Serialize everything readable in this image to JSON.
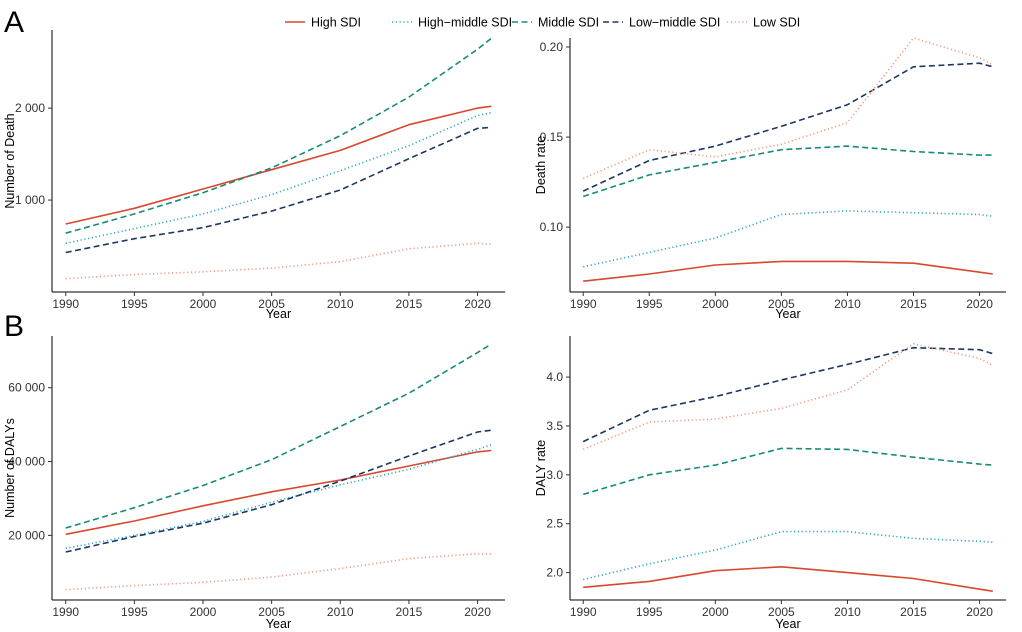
{
  "panel_labels": {
    "a": "A",
    "b": "B"
  },
  "legend": [
    {
      "name": "High SDI",
      "color": "#d9472f",
      "dash": "solid"
    },
    {
      "name": "High−middle SDI",
      "color": "#2aa8c6",
      "dash": "dotted"
    },
    {
      "name": "Middle SDI",
      "color": "#168b78",
      "dash": "dashed"
    },
    {
      "name": "Low−middle SDI",
      "color": "#1c3763",
      "dash": "dashed"
    },
    {
      "name": "Low SDI",
      "color": "#ee9a83",
      "dash": "dotted"
    }
  ],
  "chart_data": [
    {
      "type": "line",
      "id": "deaths",
      "title": "",
      "xlabel": "Year",
      "ylabel": "Number of Death",
      "xlim": [
        1989,
        2022
      ],
      "ylim": [
        0,
        2850
      ],
      "xticks": [
        1990,
        1995,
        2000,
        2005,
        2010,
        2015,
        2020
      ],
      "yticks": [
        1000,
        2000
      ],
      "ytick_labels": [
        "1 000",
        "2 000"
      ],
      "x": [
        1990,
        1995,
        2000,
        2005,
        2010,
        2015,
        2020,
        2021
      ],
      "series": [
        {
          "name": "High SDI",
          "values": [
            740,
            910,
            1120,
            1330,
            1540,
            1820,
            2000,
            2020
          ]
        },
        {
          "name": "High−middle SDI",
          "values": [
            530,
            690,
            850,
            1060,
            1320,
            1590,
            1920,
            1950
          ]
        },
        {
          "name": "Middle SDI",
          "values": [
            640,
            850,
            1080,
            1350,
            1700,
            2120,
            2640,
            2760
          ]
        },
        {
          "name": "Low−middle SDI",
          "values": [
            430,
            580,
            700,
            880,
            1110,
            1450,
            1780,
            1790
          ]
        },
        {
          "name": "Low SDI",
          "values": [
            145,
            190,
            220,
            260,
            330,
            470,
            530,
            520
          ]
        }
      ]
    },
    {
      "type": "line",
      "id": "death-rate",
      "title": "",
      "xlabel": "Year",
      "ylabel": "Death rate",
      "xlim": [
        1989,
        2022
      ],
      "ylim": [
        0.064,
        0.205
      ],
      "xticks": [
        1990,
        1995,
        2000,
        2005,
        2010,
        2015,
        2020
      ],
      "yticks": [
        0.1,
        0.15,
        0.2
      ],
      "ytick_labels": [
        "0.10",
        "0.15",
        "0.20"
      ],
      "x": [
        1990,
        1995,
        2000,
        2005,
        2010,
        2015,
        2020,
        2021
      ],
      "series": [
        {
          "name": "High SDI",
          "values": [
            0.07,
            0.074,
            0.079,
            0.081,
            0.081,
            0.08,
            0.075,
            0.074
          ]
        },
        {
          "name": "High−middle SDI",
          "values": [
            0.078,
            0.086,
            0.094,
            0.107,
            0.109,
            0.108,
            0.107,
            0.106
          ]
        },
        {
          "name": "Middle SDI",
          "values": [
            0.117,
            0.129,
            0.136,
            0.143,
            0.145,
            0.142,
            0.14,
            0.14
          ]
        },
        {
          "name": "Low−middle SDI",
          "values": [
            0.12,
            0.137,
            0.145,
            0.156,
            0.168,
            0.189,
            0.191,
            0.189
          ]
        },
        {
          "name": "Low SDI",
          "values": [
            0.127,
            0.143,
            0.139,
            0.146,
            0.158,
            0.205,
            0.194,
            0.19
          ]
        }
      ]
    },
    {
      "type": "line",
      "id": "dalys",
      "title": "",
      "xlabel": "Year",
      "ylabel": "Number of DALYs",
      "xlim": [
        1989,
        2022
      ],
      "ylim": [
        2500,
        74000
      ],
      "xticks": [
        1990,
        1995,
        2000,
        2005,
        2010,
        2015,
        2020
      ],
      "yticks": [
        20000,
        40000,
        60000
      ],
      "ytick_labels": [
        "20 000",
        "40 000",
        "60 000"
      ],
      "x": [
        1990,
        1995,
        2000,
        2005,
        2010,
        2015,
        2020,
        2021
      ],
      "series": [
        {
          "name": "High SDI",
          "values": [
            20300,
            23900,
            28000,
            31800,
            35000,
            38800,
            42600,
            43000
          ]
        },
        {
          "name": "High−middle SDI",
          "values": [
            16500,
            20000,
            23800,
            29000,
            33700,
            37900,
            43300,
            44500
          ]
        },
        {
          "name": "Middle SDI",
          "values": [
            22000,
            27500,
            33500,
            40500,
            49500,
            58500,
            69500,
            71800
          ]
        },
        {
          "name": "Low−middle SDI",
          "values": [
            15500,
            19700,
            23300,
            28300,
            34700,
            41500,
            48000,
            48500
          ]
        },
        {
          "name": "Low SDI",
          "values": [
            5300,
            6400,
            7300,
            8700,
            11000,
            13700,
            15000,
            14900
          ]
        }
      ]
    },
    {
      "type": "line",
      "id": "daly-rate",
      "title": "",
      "xlabel": "Year",
      "ylabel": "DALY rate",
      "xlim": [
        1989,
        2022
      ],
      "ylim": [
        1.72,
        4.42
      ],
      "xticks": [
        1990,
        1995,
        2000,
        2005,
        2010,
        2015,
        2020
      ],
      "yticks": [
        2.0,
        2.5,
        3.0,
        3.5,
        4.0
      ],
      "ytick_labels": [
        "2.0",
        "2.5",
        "3.0",
        "3.5",
        "4.0"
      ],
      "x": [
        1990,
        1995,
        2000,
        2005,
        2010,
        2015,
        2020,
        2021
      ],
      "series": [
        {
          "name": "High SDI",
          "values": [
            1.85,
            1.91,
            2.02,
            2.06,
            2.0,
            1.94,
            1.83,
            1.81
          ]
        },
        {
          "name": "High−middle SDI",
          "values": [
            1.93,
            2.09,
            2.23,
            2.42,
            2.42,
            2.35,
            2.32,
            2.31
          ]
        },
        {
          "name": "Middle SDI",
          "values": [
            2.8,
            3.0,
            3.1,
            3.27,
            3.26,
            3.18,
            3.11,
            3.1
          ]
        },
        {
          "name": "Low−middle SDI",
          "values": [
            3.34,
            3.66,
            3.8,
            3.97,
            4.13,
            4.3,
            4.28,
            4.24
          ]
        },
        {
          "name": "Low SDI",
          "values": [
            3.26,
            3.54,
            3.57,
            3.68,
            3.87,
            4.34,
            4.19,
            4.12
          ]
        }
      ]
    }
  ]
}
